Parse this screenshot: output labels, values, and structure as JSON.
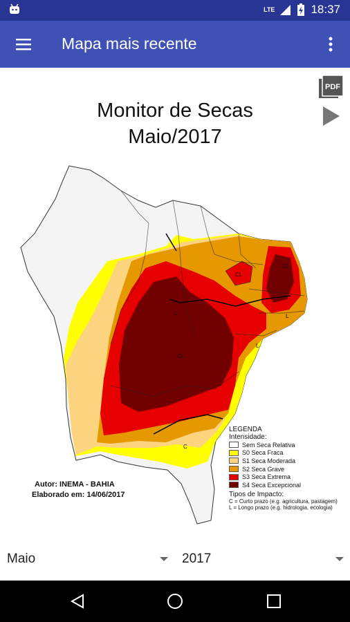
{
  "status_bar": {
    "network": "LTE",
    "time": "18:37"
  },
  "app_bar": {
    "title": "Mapa mais recente"
  },
  "map": {
    "title_line1": "Monitor de Secas",
    "title_line2": "Maio/2017",
    "author_line1": "Autor: INEMA - BAHIA",
    "author_line2": "Elaborado em: 14/06/2017",
    "impact_labels": [
      "L",
      "CL",
      "CL",
      "L",
      "L",
      "CL",
      "C"
    ],
    "legend": {
      "title": "LEGENDA",
      "intensity_title": "Intensidade:",
      "items": [
        {
          "label": "Sem Seca Relativa",
          "color": "#ffffff"
        },
        {
          "label": "S0 Seca Fraca",
          "color": "#ffff00"
        },
        {
          "label": "S1 Seca Moderada",
          "color": "#fcd37f"
        },
        {
          "label": "S2 Seca Grave",
          "color": "#e69800"
        },
        {
          "label": "S3 Seca Extrema",
          "color": "#e60000"
        },
        {
          "label": "S4 Seca Excepcional",
          "color": "#730000"
        }
      ],
      "impact_title": "Tipos de Impacto:",
      "impact_items": [
        "C = Curto prazo (e.g. agricultura, pastagem)",
        "L = Longo prazo (e.g. hidrologia, ecologia)"
      ]
    }
  },
  "selectors": {
    "month": "Maio",
    "year": "2017"
  },
  "colors": {
    "app_bar": "#3f51b5",
    "status_bar": "#283593"
  }
}
